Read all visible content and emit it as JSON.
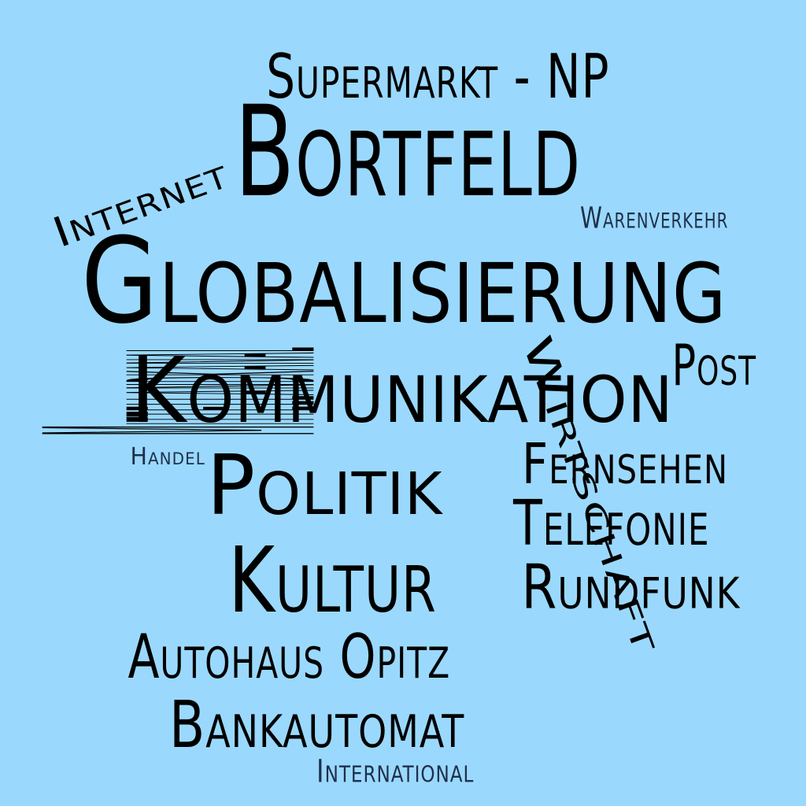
{
  "background_color": "#9ad9fd",
  "word_colors": {
    "primary": "#000000",
    "secondary": "#1f2f4a"
  },
  "words": [
    {
      "key": "bortfeld",
      "text": "Bortfeld"
    },
    {
      "key": "globalisierung",
      "text": "Globalisierung"
    },
    {
      "key": "kommunikation",
      "text": "Kommunikation"
    },
    {
      "key": "wirtschaft",
      "text": "Wirtschaft"
    },
    {
      "key": "politik",
      "text": "Politik"
    },
    {
      "key": "kultur",
      "text": "Kultur"
    },
    {
      "key": "mittellandkanal",
      "text": "Mittellandkanal"
    },
    {
      "key": "internet",
      "text": "Internet"
    },
    {
      "key": "supermarkt_np",
      "text": "Supermarkt - NP"
    },
    {
      "key": "warenverkehr",
      "text": "Warenverkehr"
    },
    {
      "key": "post",
      "text": "Post"
    },
    {
      "key": "handel",
      "text": "Handel"
    },
    {
      "key": "fernsehen",
      "text": "Fernsehen"
    },
    {
      "key": "telefonie",
      "text": "Telefonie"
    },
    {
      "key": "rundfunk",
      "text": "Rundfunk"
    },
    {
      "key": "autohaus_opitz",
      "text": "Autohaus Opitz"
    },
    {
      "key": "bankautomat",
      "text": "Bankautomat"
    },
    {
      "key": "international",
      "text": "International"
    }
  ]
}
